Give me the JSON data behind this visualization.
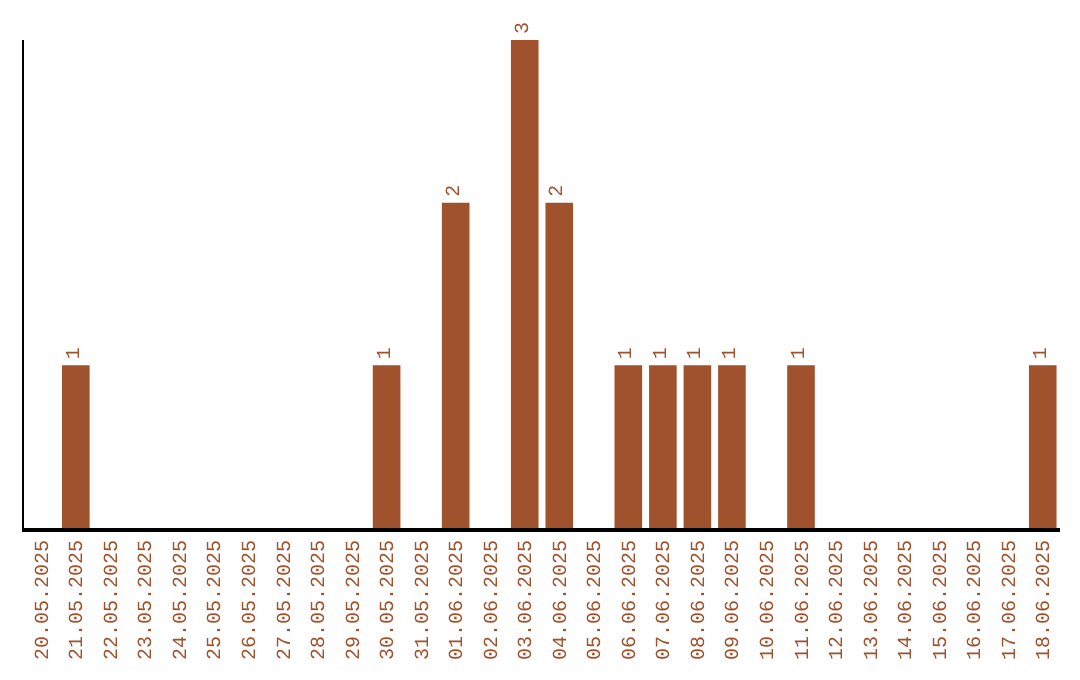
{
  "chart_data": {
    "type": "bar",
    "categories": [
      "20.05.2025",
      "21.05.2025",
      "22.05.2025",
      "23.05.2025",
      "24.05.2025",
      "25.05.2025",
      "26.05.2025",
      "27.05.2025",
      "28.05.2025",
      "29.05.2025",
      "30.05.2025",
      "31.05.2025",
      "01.06.2025",
      "02.06.2025",
      "03.06.2025",
      "04.06.2025",
      "05.06.2025",
      "06.06.2025",
      "07.06.2025",
      "08.06.2025",
      "09.06.2025",
      "10.06.2025",
      "11.06.2025",
      "12.06.2025",
      "13.06.2025",
      "14.06.2025",
      "15.06.2025",
      "16.06.2025",
      "17.06.2025",
      "18.06.2025"
    ],
    "values": [
      0,
      1,
      0,
      0,
      0,
      0,
      0,
      0,
      0,
      0,
      1,
      0,
      2,
      0,
      3,
      2,
      0,
      1,
      1,
      1,
      1,
      0,
      1,
      0,
      0,
      0,
      0,
      0,
      0,
      1
    ],
    "value_labels": [
      null,
      "1",
      null,
      null,
      null,
      null,
      null,
      null,
      null,
      null,
      "1",
      null,
      "2",
      null,
      "3",
      "2",
      null,
      "1",
      "1",
      "1",
      "1",
      null,
      "1",
      null,
      null,
      null,
      null,
      null,
      null,
      "1"
    ],
    "color": "#a0522d"
  }
}
